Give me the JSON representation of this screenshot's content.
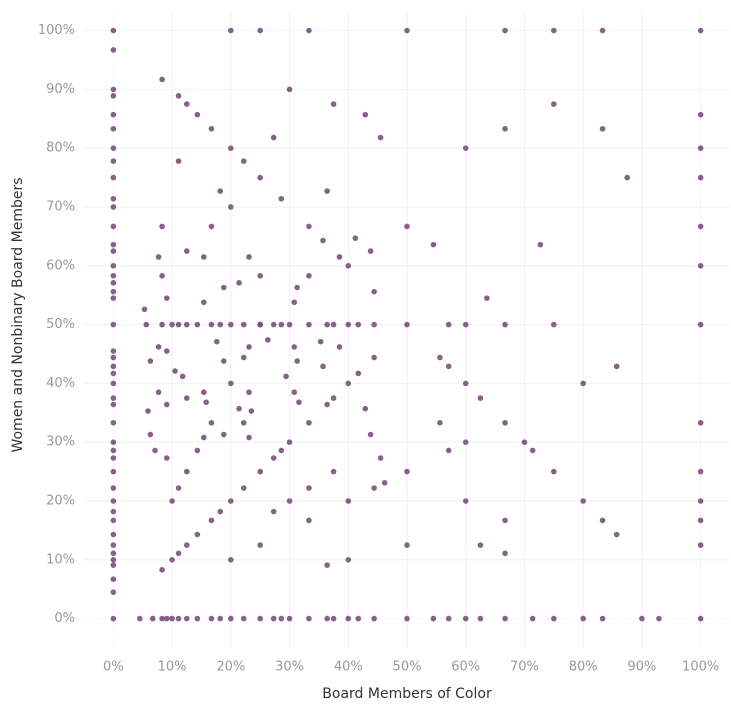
{
  "chart_data": {
    "type": "scatter",
    "x_label": "Board Members of Color",
    "y_label": "Women and Nonbinary Board Members",
    "color": "#7b4f80",
    "grid": true,
    "xlim": [
      -5,
      105
    ],
    "ylim": [
      -5,
      103.5
    ],
    "xticks": [
      {
        "value": 0,
        "label": "0%"
      },
      {
        "value": 10,
        "label": "10%"
      },
      {
        "value": 20,
        "label": "20%"
      },
      {
        "value": 30,
        "label": "30%"
      },
      {
        "value": 40,
        "label": "40%"
      },
      {
        "value": 50,
        "label": "50%"
      },
      {
        "value": 60,
        "label": "60%"
      },
      {
        "value": 70,
        "label": "70%"
      },
      {
        "value": 80,
        "label": "80%"
      },
      {
        "value": 90,
        "label": "90%"
      },
      {
        "value": 100,
        "label": "100%"
      }
    ],
    "yticks": [
      {
        "value": 0,
        "label": "0%"
      },
      {
        "value": 10,
        "label": "10%"
      },
      {
        "value": 20,
        "label": "20%"
      },
      {
        "value": 30,
        "label": "30%"
      },
      {
        "value": 40,
        "label": "40%"
      },
      {
        "value": 50,
        "label": "50%"
      },
      {
        "value": 60,
        "label": "60%"
      },
      {
        "value": 70,
        "label": "70%"
      },
      {
        "value": 80,
        "label": "80%"
      },
      {
        "value": 90,
        "label": "90%"
      },
      {
        "value": 100,
        "label": "100%"
      }
    ],
    "x": [
      0,
      0,
      0,
      0,
      0,
      0,
      0,
      0,
      0,
      0,
      0,
      0,
      0,
      0,
      0,
      0,
      0,
      0,
      0,
      0,
      0,
      0,
      0,
      0,
      0,
      0,
      0,
      0,
      0,
      0,
      0,
      0,
      0,
      0,
      0,
      0,
      0,
      0,
      0,
      0,
      0,
      0,
      0,
      0,
      4.5,
      6.7,
      8.3,
      9.1,
      10,
      11.1,
      12.5,
      14.3,
      16.7,
      18.2,
      20,
      22.2,
      25,
      27.3,
      28.6,
      30,
      33.3,
      36.4,
      37.5,
      40,
      41.7,
      44.4,
      50,
      54.5,
      57.1,
      60,
      62.5,
      66.7,
      71.4,
      75,
      80,
      83.3,
      90,
      92.9,
      100,
      20,
      25,
      33.3,
      50,
      66.7,
      75,
      83.3,
      100,
      100,
      100,
      100,
      100,
      100,
      100,
      100,
      100,
      100,
      100,
      100,
      5.6,
      8.3,
      10,
      11.1,
      12.5,
      14.3,
      16.7,
      18.2,
      20,
      22.2,
      25,
      27.3,
      28.6,
      30,
      33.3,
      36.4,
      37.5,
      40,
      41.7,
      44.4,
      50,
      57.1,
      60,
      66.7,
      8.3,
      10,
      11.1,
      12.5,
      14.3,
      16.7,
      18.2,
      20,
      22.2,
      25,
      27.3,
      28.6,
      30,
      33.3,
      36.4,
      37.5,
      40,
      41.7,
      44.4,
      33.3,
      28.6,
      25,
      22.2,
      20,
      16.7,
      14.3,
      12.5,
      11.1,
      40,
      44.4,
      55.6,
      60,
      66.7,
      71.4,
      75,
      80,
      83.3,
      85.7,
      10,
      12.5,
      14.3,
      16.7,
      20,
      22.2,
      25,
      20,
      25,
      33.3,
      40,
      44.4,
      50,
      60,
      9.1,
      9.1,
      9.1,
      7.7,
      7.7,
      7.7,
      15.4,
      15.4,
      15.4,
      15.4,
      23.1,
      23.1,
      23.1,
      23.1,
      30.8,
      30.8,
      30.8,
      38.5,
      38.5,
      6.3,
      6.3,
      18.8,
      18.8,
      18.8,
      31.3,
      31.3,
      43.8,
      43.8,
      5.9,
      11.8,
      17.6,
      23.5,
      29.4,
      35.3,
      41.2,
      7.1,
      21.4,
      21.4,
      35.7,
      35.7,
      42.9,
      57.1,
      57.1,
      62.5,
      66.7,
      70,
      75,
      80,
      60,
      54.5,
      63.6,
      72.7,
      85.7,
      87.5,
      83.3,
      75,
      12.5,
      16.7,
      11.1,
      18.2,
      27.3,
      36.4,
      45.5,
      42.9,
      60,
      66.7,
      50,
      37.5,
      30,
      8.3,
      20,
      9.1,
      11.1,
      27.3,
      30,
      36.4,
      40,
      50,
      62.5,
      66.7,
      12.5,
      22.2,
      33.3,
      37.5,
      45.5,
      46.2,
      55.6,
      33.3,
      25,
      8.3,
      8.3,
      5.3,
      26.3,
      31.6,
      10.5,
      15.8
    ],
    "values": [
      0,
      4.5,
      6.7,
      9.1,
      10,
      11.1,
      12.5,
      14.3,
      16.7,
      18.2,
      20,
      22.2,
      25,
      27.3,
      28.6,
      30,
      33.3,
      36.4,
      37.5,
      40,
      41.7,
      42.9,
      44.4,
      45.5,
      50,
      54.5,
      55.6,
      57.1,
      58.3,
      60,
      62.5,
      63.6,
      66.7,
      70,
      71.4,
      75,
      77.8,
      80,
      83.3,
      85.7,
      88.9,
      90,
      96.7,
      100,
      0,
      0,
      0,
      0,
      0,
      0,
      0,
      0,
      0,
      0,
      0,
      0,
      0,
      0,
      0,
      0,
      0,
      0,
      0,
      0,
      0,
      0,
      0,
      0,
      0,
      0,
      0,
      0,
      0,
      0,
      0,
      0,
      0,
      0,
      0,
      100,
      100,
      100,
      100,
      100,
      100,
      100,
      100,
      12.5,
      16.7,
      20,
      25,
      33.3,
      50,
      60,
      66.7,
      75,
      80,
      85.7,
      50,
      50,
      50,
      50,
      50,
      50,
      50,
      50,
      50,
      50,
      50,
      50,
      50,
      50,
      50,
      50,
      50,
      50,
      50,
      50,
      50,
      50,
      50,
      50,
      8.3,
      10,
      11.1,
      12.5,
      14.3,
      16.7,
      18.2,
      20,
      22.2,
      25,
      27.3,
      28.6,
      30,
      33.3,
      36.4,
      37.5,
      40,
      41.7,
      44.4,
      66.7,
      71.4,
      75,
      77.8,
      80,
      83.3,
      85.7,
      87.5,
      88.9,
      60,
      55.6,
      44.4,
      40,
      33.3,
      28.6,
      25,
      20,
      16.7,
      14.3,
      20,
      25,
      28.6,
      33.3,
      40,
      44.4,
      50,
      10,
      12.5,
      16.7,
      20,
      22.2,
      25,
      30,
      36.4,
      45.5,
      54.5,
      38.5,
      46.2,
      61.5,
      30.8,
      38.5,
      53.8,
      61.5,
      30.8,
      38.5,
      46.2,
      61.5,
      38.5,
      46.2,
      53.8,
      46.2,
      61.5,
      31.3,
      43.8,
      31.3,
      43.8,
      56.3,
      43.8,
      56.3,
      31.3,
      62.5,
      35.3,
      41.2,
      47.1,
      35.3,
      41.2,
      47.1,
      64.7,
      28.6,
      35.7,
      57.1,
      42.9,
      64.3,
      35.7,
      28.6,
      42.9,
      37.5,
      16.7,
      30,
      50,
      40,
      20,
      63.6,
      54.5,
      63.6,
      42.9,
      75,
      83.3,
      87.5,
      62.5,
      66.7,
      77.8,
      72.7,
      81.8,
      72.7,
      81.8,
      85.7,
      80,
      83.3,
      66.7,
      87.5,
      90,
      91.7,
      70,
      27.3,
      22.2,
      18.2,
      20,
      9.1,
      10,
      12.5,
      12.5,
      11.1,
      37.5,
      33.3,
      22.2,
      25,
      27.3,
      23.1,
      33.3,
      58.3,
      58.3,
      58.3,
      66.7,
      52.6,
      47.4,
      36.8,
      42.1,
      36.8
    ]
  }
}
